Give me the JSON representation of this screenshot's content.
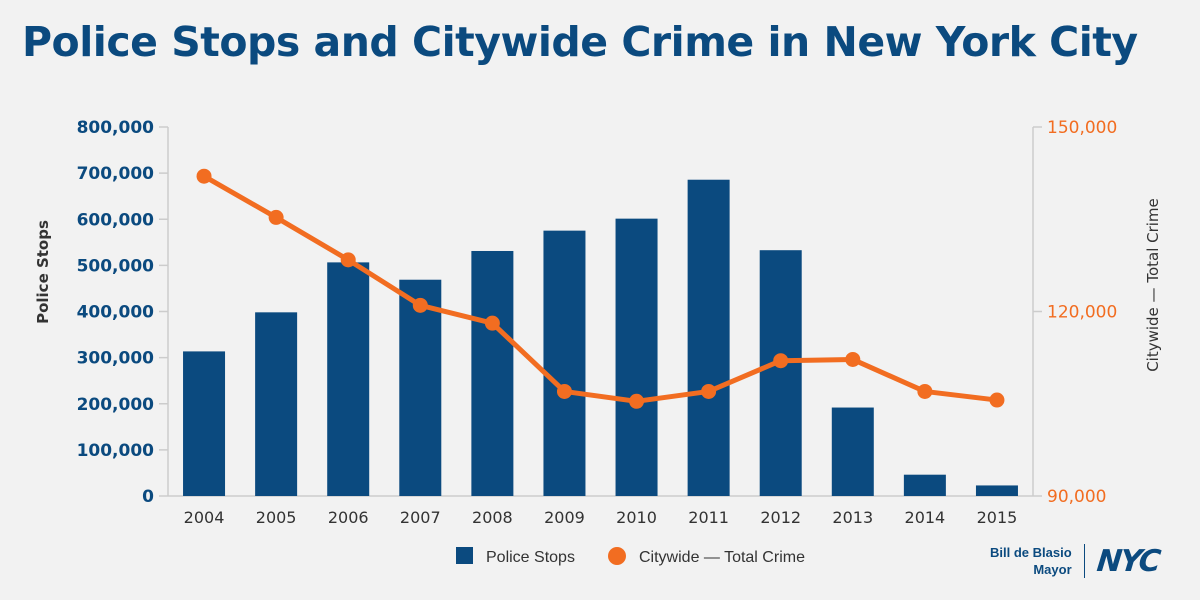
{
  "title": "Police Stops and Citywide Crime in New York City",
  "colors": {
    "bar": "#0b4a7f",
    "line": "#f26d21",
    "axis_text": "#0b4a7f",
    "right_axis_text": "#f26d21",
    "label_text": "#333333",
    "axis_line": "#cccccc"
  },
  "chart_data": {
    "type": "bar",
    "categories": [
      "2004",
      "2005",
      "2006",
      "2007",
      "2008",
      "2009",
      "2010",
      "2011",
      "2012",
      "2013",
      "2014",
      "2015"
    ],
    "series": [
      {
        "name": "Police Stops",
        "type": "bar",
        "axis": "left",
        "values": [
          313500,
          398200,
          506500,
          468900,
          531200,
          575300,
          601300,
          685700,
          532900,
          191800,
          46200,
          22900
        ]
      },
      {
        "name": "Citywide — Total Crime",
        "type": "line",
        "axis": "right",
        "values": [
          142000,
          135300,
          128400,
          121000,
          118100,
          107000,
          105400,
          107000,
          112000,
          112200,
          107000,
          105600
        ]
      }
    ],
    "y_left": {
      "label": "Police Stops",
      "range": [
        0,
        800000
      ],
      "ticks": [
        "0",
        "100,000",
        "200,000",
        "300,000",
        "400,000",
        "500,000",
        "600,000",
        "700,000",
        "800,000"
      ]
    },
    "y_right": {
      "label": "Citywide — Total Crime",
      "range": [
        90000,
        150000
      ],
      "ticks": [
        "90,000",
        "120,000",
        "150,000"
      ]
    },
    "legend": {
      "position": "bottom",
      "items": [
        "Police Stops",
        "Citywide — Total Crime"
      ]
    },
    "grid": false
  },
  "branding": {
    "mayor_line1": "Bill de Blasio",
    "mayor_line2": "Mayor",
    "logo_text": "NYC"
  }
}
